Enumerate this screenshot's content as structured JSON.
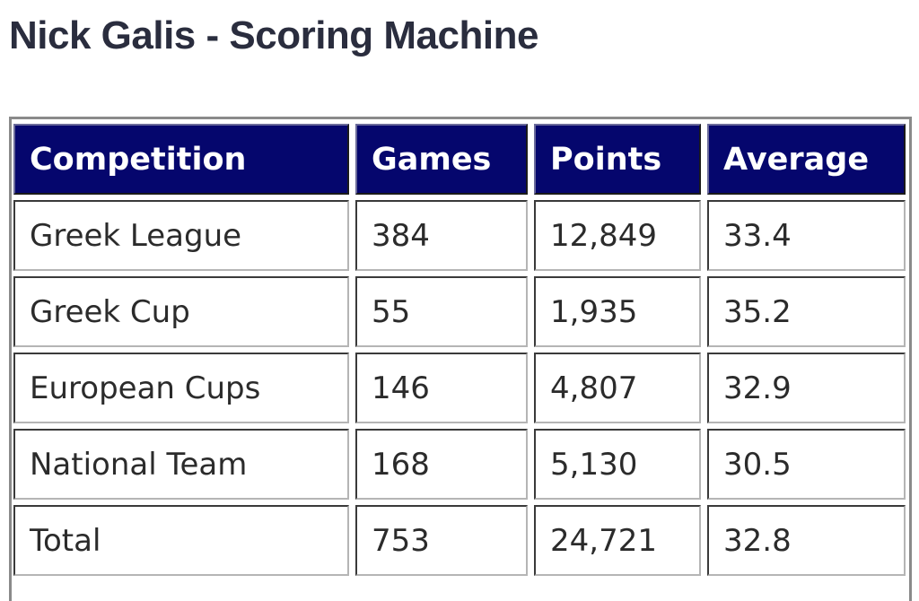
{
  "title": "Nick Galis - Scoring Machine",
  "table": {
    "headers": [
      "Competition",
      "Games",
      "Points",
      "Average"
    ],
    "rows": [
      [
        "Greek League",
        "384",
        "12,849",
        "33.4"
      ],
      [
        "Greek Cup",
        "55",
        "1,935",
        "35.2"
      ],
      [
        "European Cups",
        "146",
        "4,807",
        "32.9"
      ],
      [
        "National Team",
        "168",
        "5,130",
        "30.5"
      ],
      [
        "Total",
        "753",
        "24,721",
        "32.8"
      ]
    ]
  },
  "colors": {
    "header_background": "#05066d",
    "header_text": "#ffffff",
    "title_text": "#2a2d3e",
    "cell_text": "#2b2b2b"
  }
}
